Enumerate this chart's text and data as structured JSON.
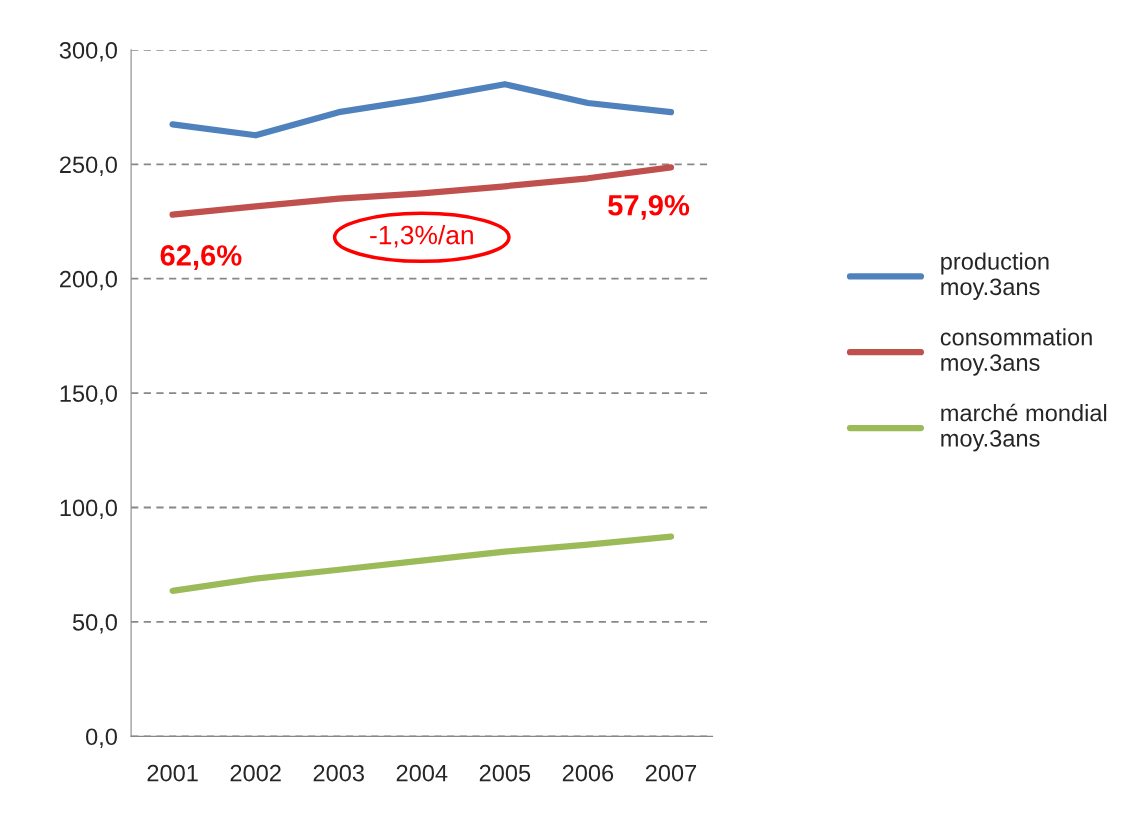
{
  "chart_data": {
    "type": "line",
    "categories": [
      "2001",
      "2002",
      "2003",
      "2004",
      "2005",
      "2006",
      "2007"
    ],
    "series": [
      {
        "name": "production moy.3ans",
        "color": "#4f81bd",
        "values": [
          267.5,
          262.7,
          272.8,
          278.5,
          285.0,
          276.8,
          272.8
        ]
      },
      {
        "name": "consommation moy.3ans",
        "color": "#c0504d",
        "values": [
          228.0,
          231.6,
          235.0,
          237.3,
          240.4,
          243.9,
          248.7
        ]
      },
      {
        "name": "marché mondial moy.3ans",
        "color": "#9bbb59",
        "values": [
          63.6,
          68.9,
          72.8,
          76.8,
          80.7,
          83.8,
          87.3
        ]
      }
    ],
    "ylim": [
      0,
      300
    ],
    "yticks": [
      {
        "value": 0,
        "label": "0,0"
      },
      {
        "value": 50,
        "label": "50,0"
      },
      {
        "value": 100,
        "label": "100,0"
      },
      {
        "value": 150,
        "label": "150,0"
      },
      {
        "value": 200,
        "label": "200,0"
      },
      {
        "value": 250,
        "label": "250,0"
      },
      {
        "value": 300,
        "label": "300,0"
      }
    ],
    "grid": "y",
    "legend": "right",
    "marker": "none",
    "line_style": "solid",
    "annotations": [
      "62,6%",
      "-1,3%/an",
      "57,9%"
    ]
  }
}
